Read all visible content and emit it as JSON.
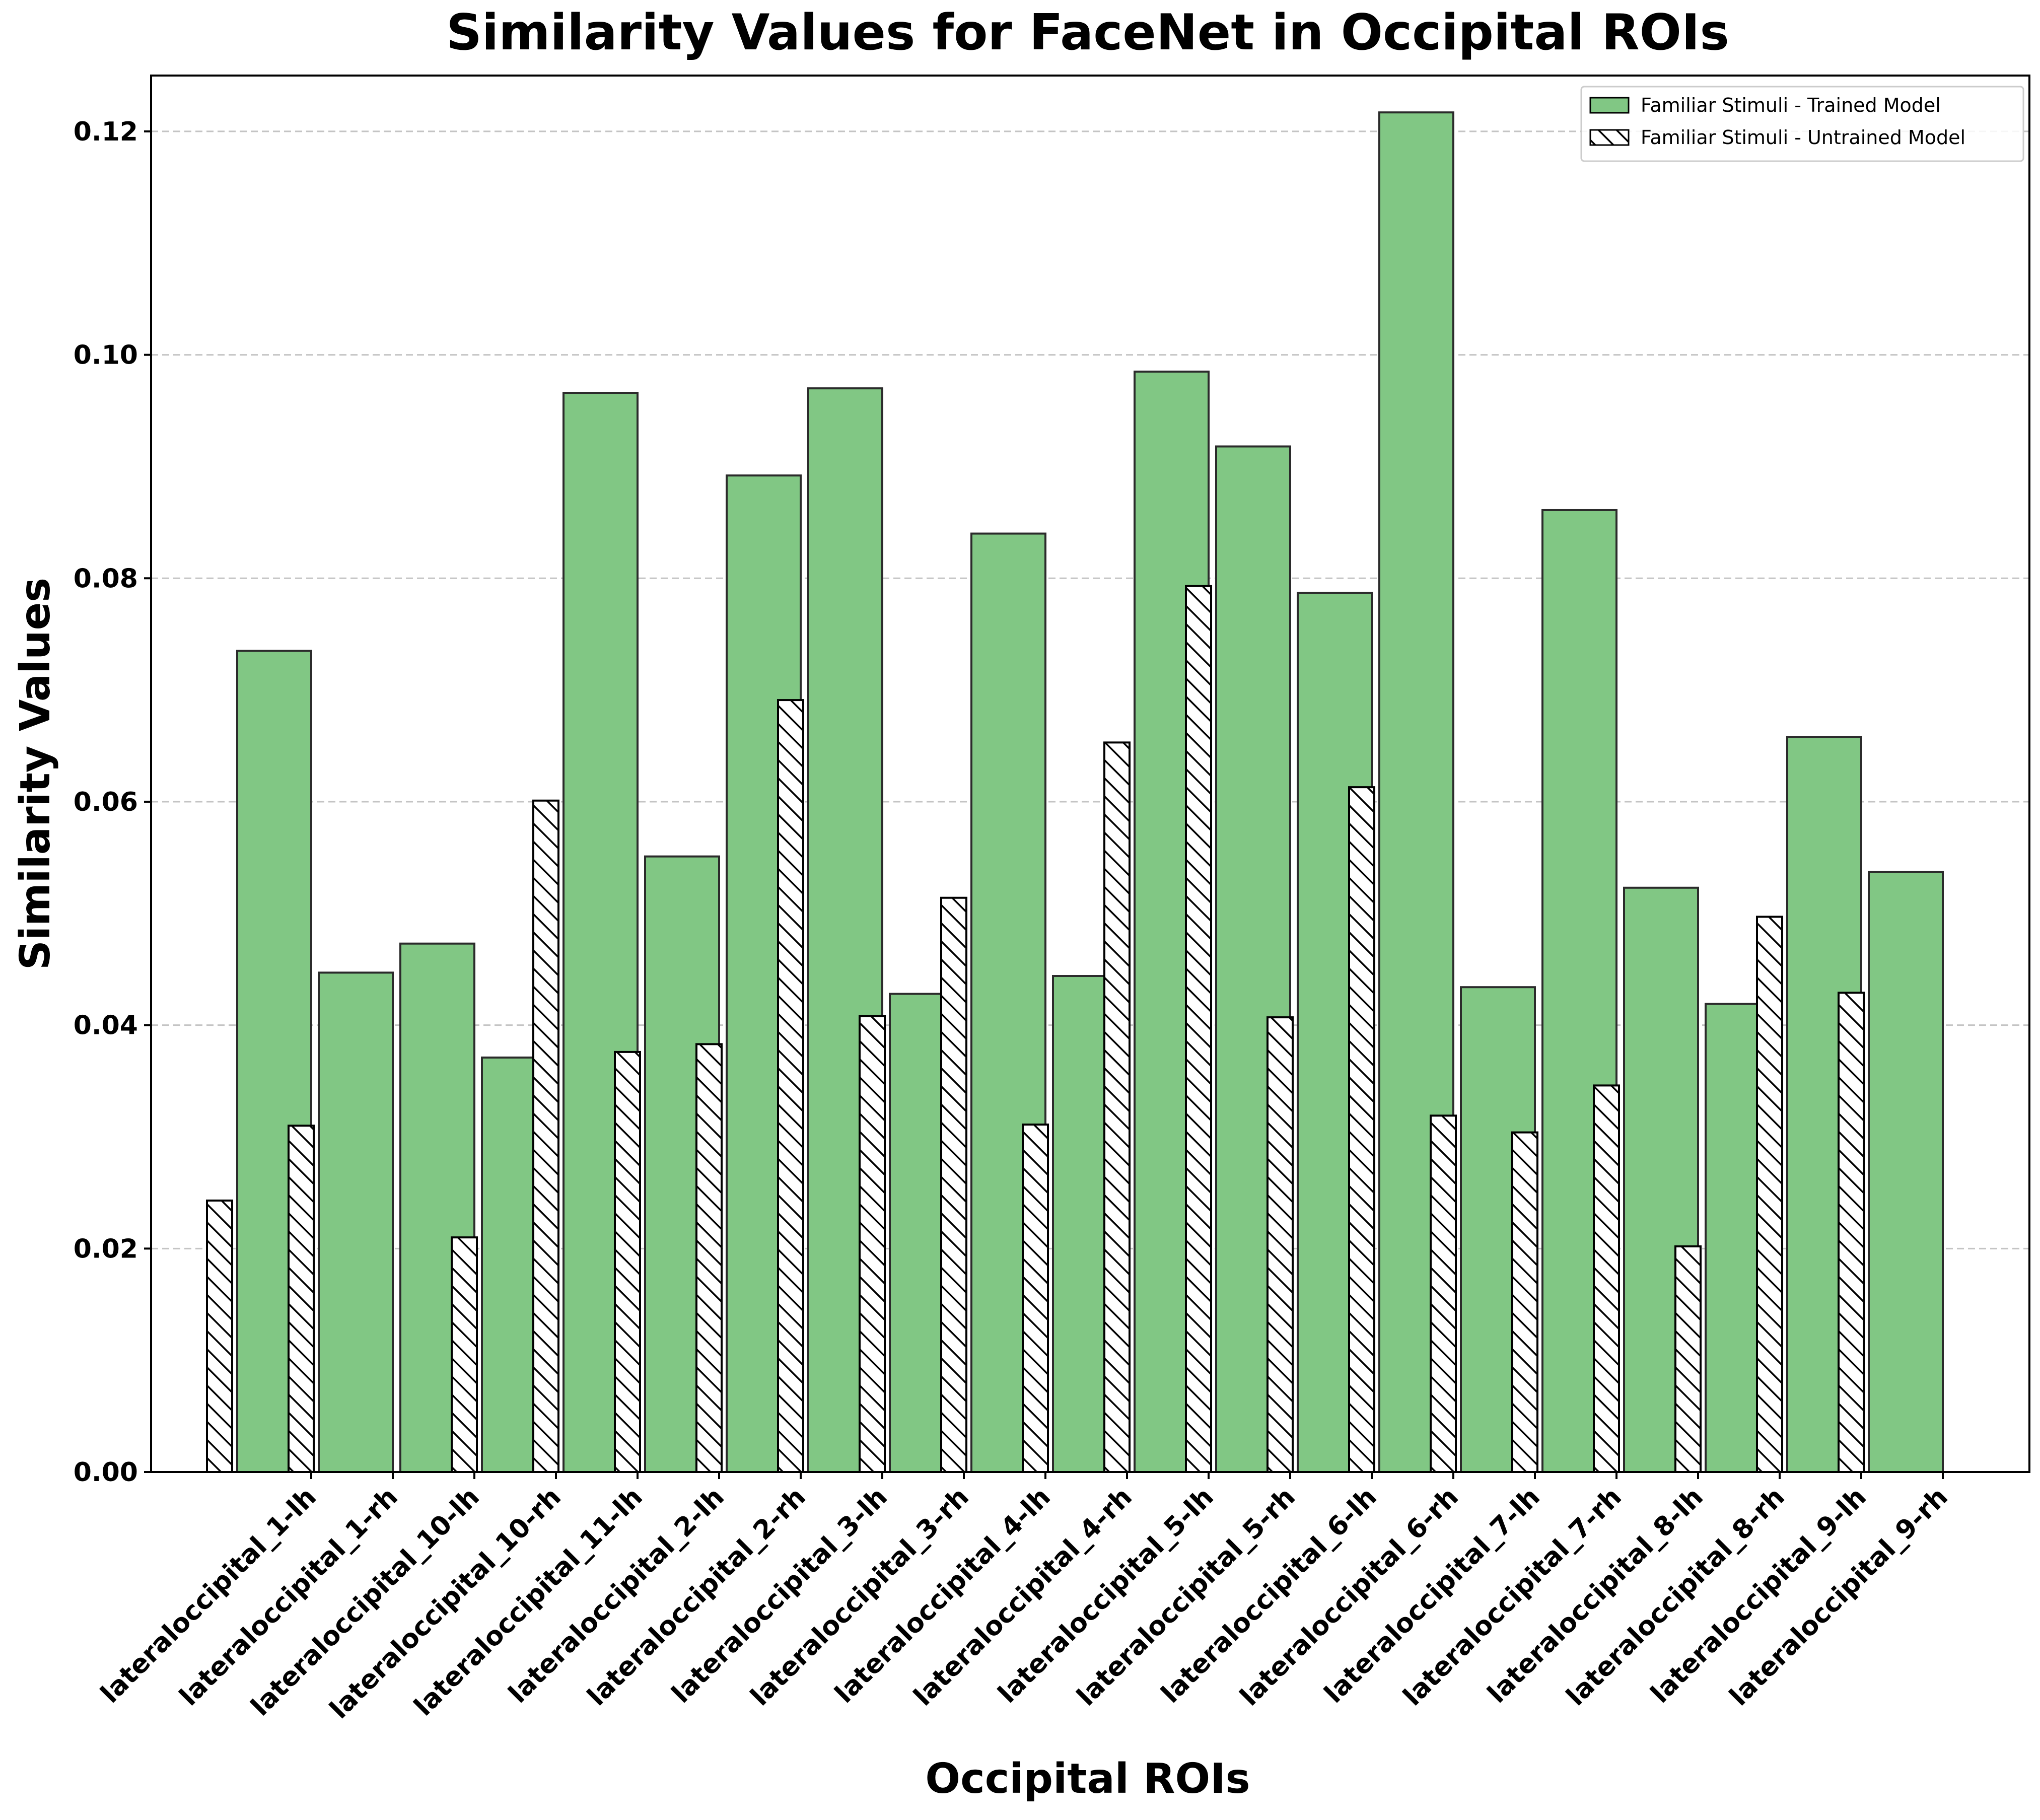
{
  "chart_data": {
    "type": "bar",
    "title": "Similarity Values for FaceNet in Occipital ROIs",
    "xlabel": "Occipital ROIs",
    "ylabel": "Similarity Values",
    "ylim": [
      0,
      0.125
    ],
    "yticks": [
      0.0,
      0.02,
      0.04,
      0.06,
      0.08,
      0.1,
      0.12
    ],
    "ytick_labels": [
      "0.00",
      "0.02",
      "0.04",
      "0.06",
      "0.08",
      "0.10",
      "0.12"
    ],
    "grid": "y dashed",
    "legend_position": "top-right",
    "categories": [
      "lateraloccipital_1-lh",
      "lateraloccipital_1-rh",
      "lateraloccipital_10-lh",
      "lateraloccipital_10-rh",
      "lateraloccipital_11-lh",
      "lateraloccipital_2-lh",
      "lateraloccipital_2-rh",
      "lateraloccipital_3-lh",
      "lateraloccipital_3-rh",
      "lateraloccipital_4-lh",
      "lateraloccipital_4-rh",
      "lateraloccipital_5-lh",
      "lateraloccipital_5-rh",
      "lateraloccipital_6-lh",
      "lateraloccipital_6-rh",
      "lateraloccipital_7-lh",
      "lateraloccipital_7-rh",
      "lateraloccipital_8-lh",
      "lateraloccipital_8-rh",
      "lateraloccipital_9-lh",
      "lateraloccipital_9-rh"
    ],
    "series": [
      {
        "name": "Familiar Stimuli - Trained Model",
        "color": "#81c784",
        "style": "solid",
        "values": [
          0.0735,
          0.0447,
          0.0473,
          0.0371,
          0.0966,
          0.0551,
          0.0892,
          0.097,
          0.0428,
          0.084,
          0.0444,
          0.0985,
          0.0918,
          0.0787,
          0.1217,
          0.0434,
          0.0861,
          0.0523,
          0.0419,
          0.0658,
          0.0537
        ]
      },
      {
        "name": "Familiar Stimuli - Untrained Model",
        "color": "#ffffff",
        "style": "hatched",
        "values": [
          0.0243,
          0.031,
          0.0,
          0.021,
          0.0601,
          0.0376,
          0.0383,
          0.0691,
          0.0408,
          0.0514,
          0.0311,
          0.0653,
          0.0793,
          0.0407,
          0.0613,
          0.0319,
          0.0304,
          0.0346,
          0.0202,
          0.0497,
          0.0429
        ]
      }
    ]
  }
}
